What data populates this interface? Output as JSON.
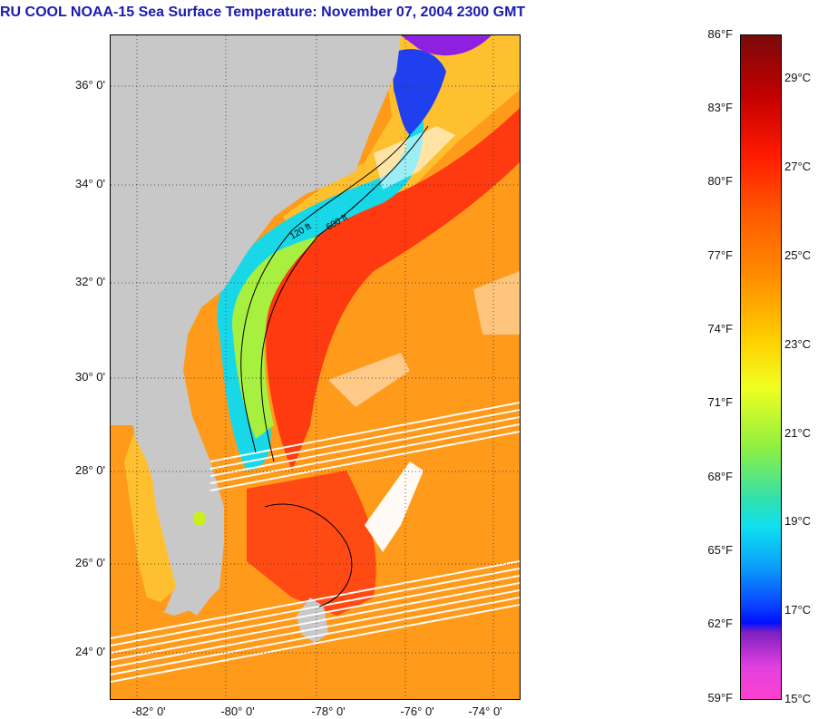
{
  "title": "RU COOL  NOAA-15  Sea Surface Temperature:  November 07, 2004 2300 GMT",
  "map": {
    "latitude_labels": [
      "36° 0'",
      "34° 0'",
      "32° 0'",
      "30° 0'",
      "28° 0'",
      "26° 0'",
      "24° 0'"
    ],
    "longitude_labels": [
      "-82° 0'",
      "-80° 0'",
      "-78° 0'",
      "-76° 0'",
      "-74° 0'"
    ],
    "contour_labels": [
      "120 ft",
      "600 ft"
    ],
    "colors": {
      "land": "#c8c8c8",
      "gulf_stream": "#ff3a10",
      "offshore": "#ff9a1a",
      "shelf_cool": "#18d8e8",
      "shelf_warm": "#a8f040",
      "nearshore_cold": "#2040f0",
      "cloud": "#ffffff"
    }
  },
  "colorbar": {
    "fahrenheit_labels": [
      "86°F",
      "83°F",
      "80°F",
      "77°F",
      "74°F",
      "71°F",
      "68°F",
      "65°F",
      "62°F",
      "59°F"
    ],
    "celsius_labels": [
      "29°C",
      "27°C",
      "25°C",
      "23°C",
      "21°C",
      "19°C",
      "17°C",
      "15°C"
    ]
  }
}
